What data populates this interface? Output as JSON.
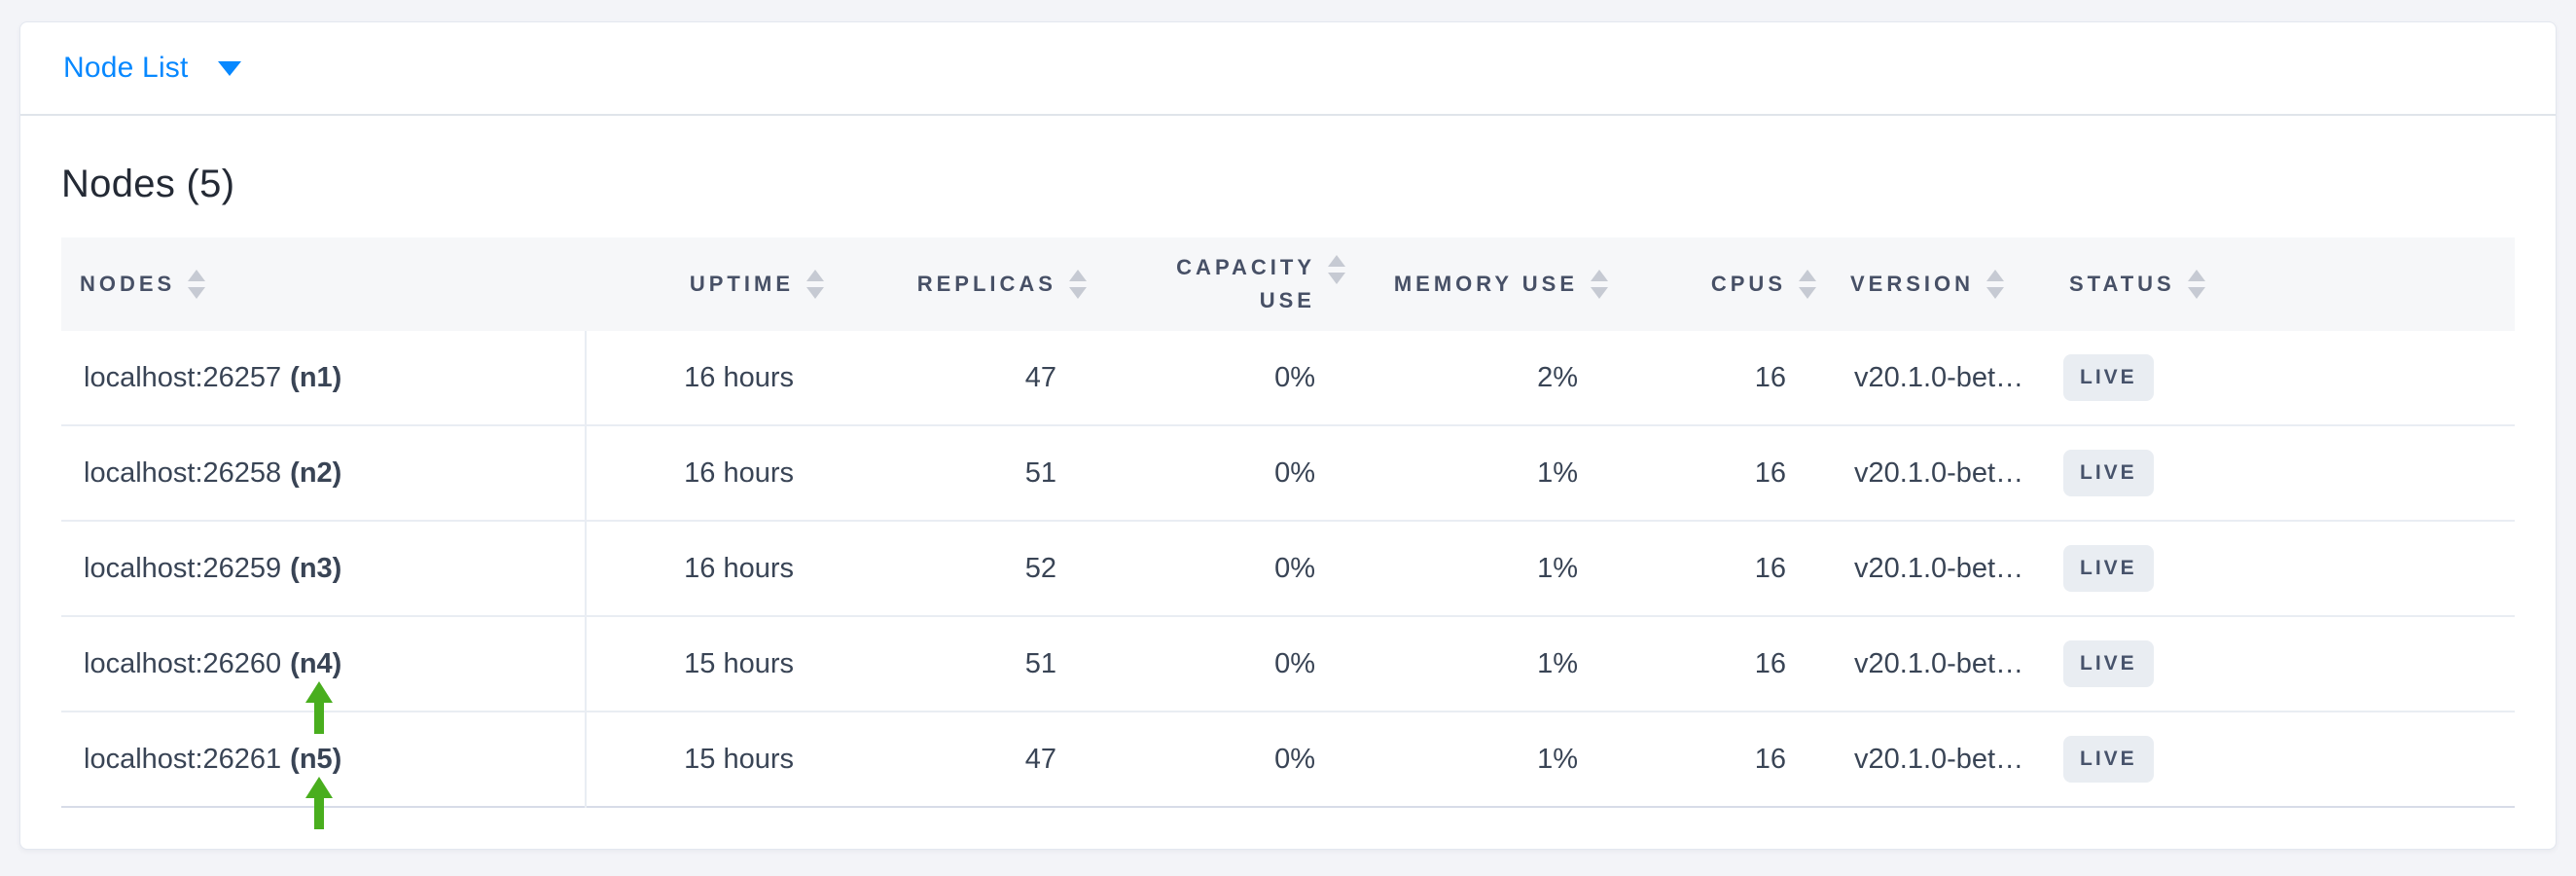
{
  "toolbar": {
    "dropdown_label": "Node List"
  },
  "heading": "Nodes (5)",
  "table": {
    "columns": [
      {
        "key": "address",
        "label": "NODES"
      },
      {
        "key": "uptime",
        "label": "UPTIME"
      },
      {
        "key": "replicas",
        "label": "REPLICAS"
      },
      {
        "key": "capacity_use",
        "label": "CAPACITY USE"
      },
      {
        "key": "memory_use",
        "label": "MEMORY USE"
      },
      {
        "key": "cpus",
        "label": "CPUS"
      },
      {
        "key": "version",
        "label": "VERSION"
      },
      {
        "key": "status",
        "label": "STATUS"
      }
    ],
    "rows": [
      {
        "address": "localhost:26257",
        "node_id": "(n1)",
        "uptime": "16 hours",
        "replicas": "47",
        "capacity_use": "0%",
        "memory_use": "2%",
        "cpus": "16",
        "version": "v20.1.0-bet…",
        "status": "LIVE"
      },
      {
        "address": "localhost:26258",
        "node_id": "(n2)",
        "uptime": "16 hours",
        "replicas": "51",
        "capacity_use": "0%",
        "memory_use": "1%",
        "cpus": "16",
        "version": "v20.1.0-bet…",
        "status": "LIVE"
      },
      {
        "address": "localhost:26259",
        "node_id": "(n3)",
        "uptime": "16 hours",
        "replicas": "52",
        "capacity_use": "0%",
        "memory_use": "1%",
        "cpus": "16",
        "version": "v20.1.0-bet…",
        "status": "LIVE"
      },
      {
        "address": "localhost:26260",
        "node_id": "(n4)",
        "uptime": "15 hours",
        "replicas": "51",
        "capacity_use": "0%",
        "memory_use": "1%",
        "cpus": "16",
        "version": "v20.1.0-bet…",
        "status": "LIVE"
      },
      {
        "address": "localhost:26261",
        "node_id": "(n5)",
        "uptime": "15 hours",
        "replicas": "47",
        "capacity_use": "0%",
        "memory_use": "1%",
        "cpus": "16",
        "version": "v20.1.0-bet…",
        "status": "LIVE"
      }
    ]
  },
  "annotations": {
    "arrow_row_indices": [
      3,
      4
    ],
    "arrow_color": "#49ae1e"
  },
  "colors": {
    "accent_blue": "#0788ff",
    "page_background": "#f3f4f8",
    "header_background": "#f6f7f9",
    "header_text": "#475066",
    "cell_text": "#394455",
    "badge_background": "#e9edf2",
    "badge_text": "#47536b",
    "row_divider": "#e9edf3",
    "arrow_green": "#49ae1e"
  }
}
